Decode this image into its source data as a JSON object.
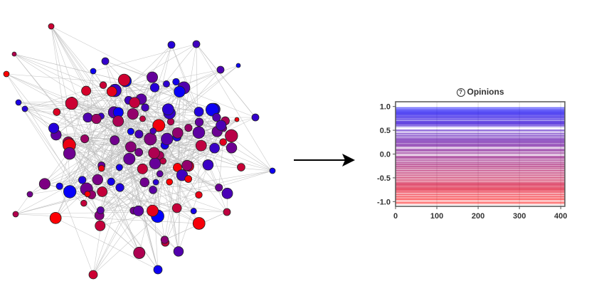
{
  "chart_data": {
    "type": "line",
    "title": "Opinions",
    "title_icon": "question-circle-icon",
    "xlim": [
      0,
      410
    ],
    "ylim": [
      -1.1,
      1.1
    ],
    "x_ticks": [
      "0",
      "100",
      "200",
      "300",
      "400"
    ],
    "y_ticks": [
      "1.0",
      "0.5",
      "0.0",
      "-0.5",
      "-1.0"
    ],
    "opinion_levels": [
      0.97,
      0.93,
      0.9,
      0.87,
      0.85,
      0.82,
      0.79,
      0.76,
      0.72,
      0.68,
      0.66,
      0.64,
      0.6,
      0.5,
      0.43,
      0.38,
      0.33,
      0.3,
      0.27,
      0.24,
      0.2,
      0.17,
      0.1,
      0.07,
      0.02,
      -0.05,
      -0.08,
      -0.13,
      -0.18,
      -0.22,
      -0.26,
      -0.3,
      -0.35,
      -0.4,
      -0.45,
      -0.5,
      -0.55,
      -0.6,
      -0.63,
      -0.66,
      -0.7,
      -0.73,
      -0.76,
      -0.8,
      -0.85,
      -0.9,
      -0.95,
      -1.02
    ],
    "color_positive": "#0000ff",
    "color_negative": "#ff0000",
    "color_neutral": "#800080"
  },
  "network": {
    "node_stroke": "#222222",
    "edge_color": "#bbbbbb"
  },
  "arrow": {
    "color": "#000000"
  }
}
